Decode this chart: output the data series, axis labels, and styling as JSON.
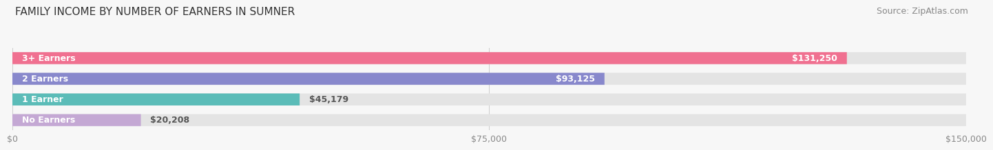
{
  "title": "FAMILY INCOME BY NUMBER OF EARNERS IN SUMNER",
  "source": "Source: ZipAtlas.com",
  "categories": [
    "No Earners",
    "1 Earner",
    "2 Earners",
    "3+ Earners"
  ],
  "values": [
    20208,
    45179,
    93125,
    131250
  ],
  "bar_colors": [
    "#c4a8d4",
    "#5bbcb8",
    "#8888cc",
    "#f07090"
  ],
  "value_labels": [
    "$20,208",
    "$45,179",
    "$93,125",
    "$131,250"
  ],
  "xlim": [
    0,
    150000
  ],
  "xticks": [
    0,
    75000,
    150000
  ],
  "xtick_labels": [
    "$0",
    "$75,000",
    "$150,000"
  ],
  "background_color": "#f7f7f7",
  "title_fontsize": 11,
  "source_fontsize": 9,
  "label_fontsize": 9,
  "value_fontsize": 9,
  "tick_fontsize": 9
}
